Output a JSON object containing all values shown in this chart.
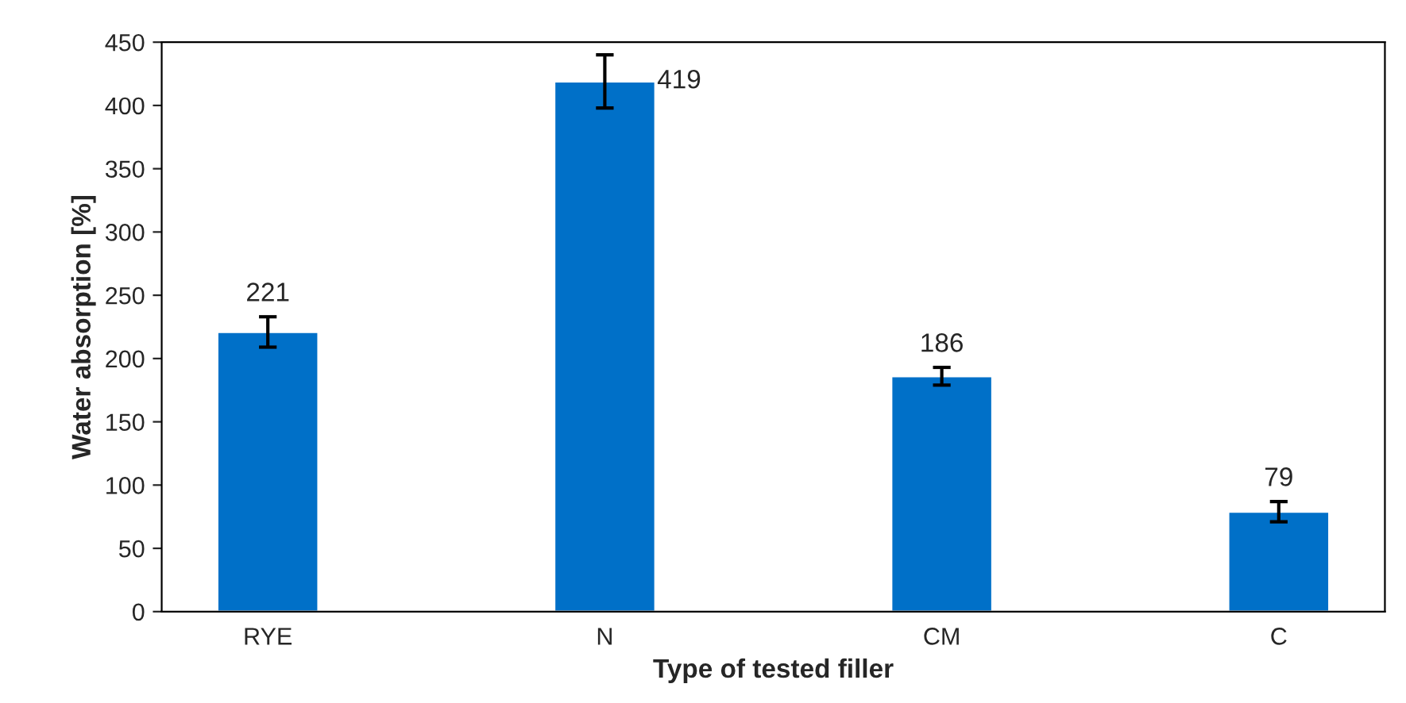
{
  "chart_data": {
    "type": "bar",
    "xlabel": "Type of tested filler",
    "ylabel": "Water absorption [%]",
    "categories": [
      "RYE",
      "N",
      "CM",
      "C"
    ],
    "values": [
      221,
      419,
      186,
      79
    ],
    "errors": [
      12,
      21,
      7,
      8
    ],
    "color": "#0070c8",
    "data_labels": true,
    "ylim": [
      0,
      450
    ],
    "yticks": [
      0,
      50,
      100,
      150,
      200,
      250,
      300,
      350,
      400,
      450
    ],
    "grid": false
  }
}
